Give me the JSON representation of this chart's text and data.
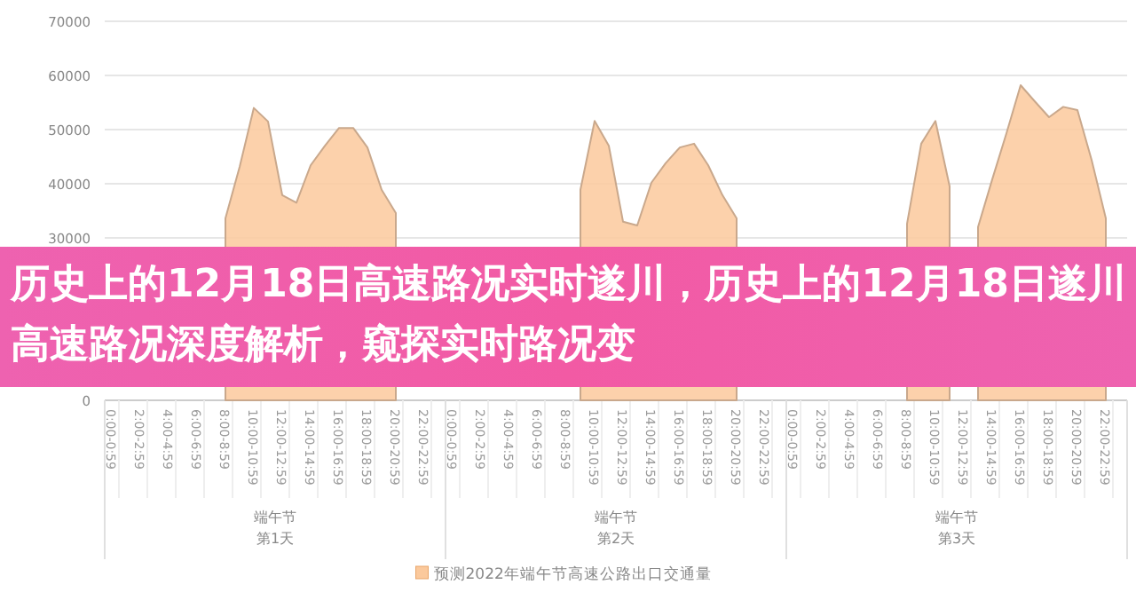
{
  "chart_data": {
    "type": "area",
    "title": "历史上的12月18日高速路况实时遂川，历史上的12月18日遂川高速路况深度解析，窥探实时路况变",
    "categories": [
      "0:00-0:59",
      null,
      "2:00-2:59",
      null,
      "4:00-4:59",
      null,
      "6:00-6:59",
      null,
      "8:00-8:59",
      null,
      "10:00-10:59",
      null,
      "12:00-12:59",
      null,
      "14:00-14:59",
      null,
      "16:00-16:59",
      null,
      "18:00-18:59",
      null,
      "20:00-20:59",
      null,
      "22:00-22:59",
      null,
      "0:00-0:59",
      null,
      "2:00-2:59",
      null,
      "4:00-4:59",
      null,
      "6:00-6:59",
      null,
      "8:00-8:59",
      null,
      "10:00-10:59",
      null,
      "12:00-12:59",
      null,
      "14:00-14:59",
      null,
      "16:00-16:59",
      null,
      "18:00-18:59",
      null,
      "20:00-20:59",
      null,
      "22:00-22:59",
      null,
      "0:00-0:59",
      null,
      "2:00-2:59",
      null,
      "4:00-4:59",
      null,
      "6:00-6:59",
      null,
      "8:00-8:59",
      null,
      "10:00-10:59",
      null,
      "12:00-12:59",
      null,
      "14:00-14:59",
      null,
      "16:00-16:59",
      null,
      "18:00-18:59",
      null,
      "20:00-20:59",
      null,
      "22:00-22:59",
      null
    ],
    "series": [
      {
        "name": "预测2022年端午节高速公路出口交通量",
        "color": "#fbc99c",
        "values": [
          null,
          null,
          null,
          null,
          null,
          null,
          null,
          null,
          33600,
          43100,
          54000,
          51500,
          37900,
          36500,
          43400,
          47000,
          50300,
          50300,
          46700,
          38900,
          34600,
          null,
          null,
          null,
          null,
          null,
          null,
          null,
          null,
          null,
          null,
          null,
          null,
          38900,
          51600,
          47000,
          33000,
          32300,
          40200,
          43800,
          46700,
          47400,
          43400,
          37900,
          33600,
          null,
          null,
          null,
          null,
          null,
          null,
          null,
          null,
          null,
          null,
          null,
          32600,
          47400,
          51600,
          39500,
          null,
          32000,
          40800,
          49300,
          58200,
          55200,
          52300,
          54200,
          53600,
          44400,
          33600,
          null
        ]
      }
    ],
    "ylim": [
      0,
      70000
    ],
    "yticks": [
      0,
      30000,
      40000,
      50000,
      60000,
      70000
    ],
    "grid": "y",
    "legend": "bottom",
    "annotations": [
      "端午节",
      "第1天",
      "端午节",
      "第2天",
      "端午节",
      "第3天"
    ]
  }
}
